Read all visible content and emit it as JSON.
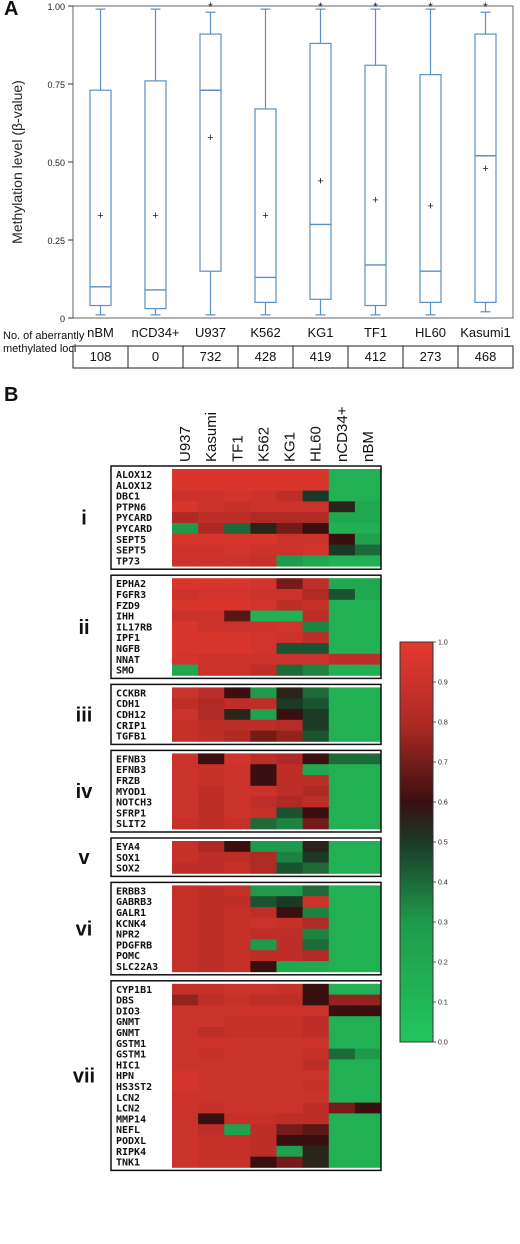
{
  "panel_labels": {
    "a": "A",
    "b": "B"
  },
  "colors": {
    "box": "#5b8fc7",
    "axis": "#333333",
    "heat_low": "#22c55e",
    "heat_mid": "#3a0f0f",
    "heat_high": "#e53a30",
    "frame": "#111111"
  },
  "chart_data": [
    {
      "type": "box",
      "ylabel": "Methylation level (β-value)",
      "ylim": [
        0,
        1
      ],
      "yticks": [
        "0",
        "0.25",
        "0.50",
        "0.75",
        "1.00"
      ],
      "categories": [
        "nBM",
        "nCD34+",
        "U937",
        "K562",
        "KG1",
        "TF1",
        "HL60",
        "Kasumi1"
      ],
      "boxes": [
        {
          "min": 0.01,
          "q1": 0.04,
          "median": 0.1,
          "q3": 0.73,
          "max": 0.99,
          "mean": 0.33,
          "significant": false
        },
        {
          "min": 0.01,
          "q1": 0.03,
          "median": 0.09,
          "q3": 0.76,
          "max": 0.99,
          "mean": 0.33,
          "significant": false
        },
        {
          "min": 0.01,
          "q1": 0.15,
          "median": 0.73,
          "q3": 0.91,
          "max": 0.98,
          "mean": 0.58,
          "significant": true
        },
        {
          "min": 0.01,
          "q1": 0.05,
          "median": 0.13,
          "q3": 0.67,
          "max": 0.99,
          "mean": 0.33,
          "significant": false
        },
        {
          "min": 0.01,
          "q1": 0.06,
          "median": 0.3,
          "q3": 0.88,
          "max": 0.99,
          "mean": 0.44,
          "significant": true
        },
        {
          "min": 0.01,
          "q1": 0.04,
          "median": 0.17,
          "q3": 0.81,
          "max": 0.99,
          "mean": 0.38,
          "significant": true
        },
        {
          "min": 0.01,
          "q1": 0.05,
          "median": 0.15,
          "q3": 0.78,
          "max": 0.99,
          "mean": 0.36,
          "significant": true
        },
        {
          "min": 0.02,
          "q1": 0.05,
          "median": 0.52,
          "q3": 0.91,
          "max": 0.98,
          "mean": 0.48,
          "significant": true
        }
      ],
      "significance_marker": "*",
      "mean_marker": "+",
      "table": {
        "header": "No. of aberrantly methylated loci",
        "values": [
          "108",
          "0",
          "732",
          "428",
          "419",
          "412",
          "273",
          "468"
        ]
      }
    },
    {
      "type": "heatmap",
      "columns": [
        "U937",
        "Kasumi",
        "TF1",
        "K562",
        "KG1",
        "HL60",
        "nCD34+",
        "nBM"
      ],
      "colorbar": {
        "min": 0.0,
        "max": 1.0,
        "ticks": [
          "0.0",
          "0.1",
          "0.2",
          "0.3",
          "0.4",
          "0.5",
          "0.6",
          "0.7",
          "0.8",
          "0.9",
          "1.0"
        ]
      },
      "groups": [
        {
          "label": "i",
          "rows": [
            {
              "gene": "ALOX12",
              "values": [
                0.95,
                0.95,
                0.95,
                0.95,
                0.95,
                0.95,
                0.15,
                0.15
              ]
            },
            {
              "gene": "ALOX12",
              "values": [
                0.95,
                0.95,
                0.95,
                0.95,
                0.95,
                0.95,
                0.15,
                0.15
              ]
            },
            {
              "gene": "DBC1",
              "values": [
                0.9,
                0.9,
                0.92,
                0.9,
                0.85,
                0.5,
                0.15,
                0.15
              ]
            },
            {
              "gene": "PTPN6",
              "values": [
                0.95,
                0.9,
                0.88,
                0.9,
                0.9,
                0.9,
                0.55,
                0.2
              ]
            },
            {
              "gene": "PYCARD",
              "values": [
                0.8,
                0.85,
                0.85,
                0.8,
                0.8,
                0.8,
                0.2,
                0.2
              ]
            },
            {
              "gene": "PYCARD",
              "values": [
                0.3,
                0.8,
                0.4,
                0.55,
                0.7,
                0.6,
                0.15,
                0.15
              ]
            },
            {
              "gene": "SEPT5",
              "values": [
                0.95,
                0.95,
                0.95,
                0.95,
                0.9,
                0.9,
                0.6,
                0.25
              ]
            },
            {
              "gene": "SEPT5",
              "values": [
                0.9,
                0.9,
                0.92,
                0.9,
                0.9,
                0.92,
                0.5,
                0.4
              ]
            },
            {
              "gene": "TP73",
              "values": [
                0.9,
                0.9,
                0.9,
                0.88,
                0.3,
                0.2,
                0.15,
                0.15
              ]
            }
          ]
        },
        {
          "label": "ii",
          "rows": [
            {
              "gene": "EPHA2",
              "values": [
                0.95,
                0.95,
                0.95,
                0.92,
                0.7,
                0.85,
                0.2,
                0.2
              ]
            },
            {
              "gene": "FGFR3",
              "values": [
                0.9,
                0.92,
                0.92,
                0.9,
                0.9,
                0.8,
                0.45,
                0.2
              ]
            },
            {
              "gene": "FZD9",
              "values": [
                0.95,
                0.95,
                0.95,
                0.92,
                0.85,
                0.88,
                0.15,
                0.15
              ]
            },
            {
              "gene": "IHH",
              "values": [
                0.9,
                0.9,
                0.65,
                0.15,
                0.15,
                0.85,
                0.15,
                0.15
              ]
            },
            {
              "gene": "IL17RB",
              "values": [
                0.95,
                0.9,
                0.9,
                0.9,
                0.92,
                0.35,
                0.15,
                0.15
              ]
            },
            {
              "gene": "IPF1",
              "values": [
                0.95,
                0.95,
                0.95,
                0.92,
                0.9,
                0.85,
                0.15,
                0.15
              ]
            },
            {
              "gene": "NGFB",
              "values": [
                0.95,
                0.95,
                0.95,
                0.92,
                0.45,
                0.45,
                0.15,
                0.15
              ]
            },
            {
              "gene": "NNAT",
              "values": [
                0.92,
                0.9,
                0.9,
                0.9,
                0.9,
                0.9,
                0.85,
                0.85
              ]
            },
            {
              "gene": "SMO",
              "values": [
                0.2,
                0.9,
                0.9,
                0.85,
                0.4,
                0.35,
                0.15,
                0.15
              ]
            }
          ]
        },
        {
          "label": "iii",
          "rows": [
            {
              "gene": "CCKBR",
              "values": [
                0.9,
                0.85,
                0.6,
                0.3,
                0.55,
                0.4,
                0.15,
                0.15
              ]
            },
            {
              "gene": "CDH1",
              "values": [
                0.85,
                0.8,
                0.85,
                0.85,
                0.5,
                0.45,
                0.15,
                0.15
              ]
            },
            {
              "gene": "CDH12",
              "values": [
                0.9,
                0.8,
                0.55,
                0.25,
                0.6,
                0.5,
                0.15,
                0.15
              ]
            },
            {
              "gene": "CRIP1",
              "values": [
                0.88,
                0.85,
                0.85,
                0.85,
                0.82,
                0.5,
                0.15,
                0.15
              ]
            },
            {
              "gene": "TGFB1",
              "values": [
                0.88,
                0.85,
                0.8,
                0.7,
                0.75,
                0.45,
                0.15,
                0.15
              ]
            }
          ]
        },
        {
          "label": "iv",
          "rows": [
            {
              "gene": "EFNB3",
              "values": [
                0.9,
                0.6,
                0.92,
                0.85,
                0.8,
                0.6,
                0.4,
                0.4
              ]
            },
            {
              "gene": "EFNB3",
              "values": [
                0.9,
                0.88,
                0.9,
                0.6,
                0.85,
                0.2,
                0.15,
                0.15
              ]
            },
            {
              "gene": "FRZB",
              "values": [
                0.9,
                0.88,
                0.9,
                0.6,
                0.85,
                0.85,
                0.15,
                0.15
              ]
            },
            {
              "gene": "MYOD1",
              "values": [
                0.9,
                0.85,
                0.9,
                0.9,
                0.85,
                0.8,
                0.15,
                0.15
              ]
            },
            {
              "gene": "NOTCH3",
              "values": [
                0.9,
                0.85,
                0.9,
                0.85,
                0.8,
                0.85,
                0.15,
                0.15
              ]
            },
            {
              "gene": "SFRP1",
              "values": [
                0.9,
                0.85,
                0.9,
                0.88,
                0.45,
                0.6,
                0.15,
                0.15
              ]
            },
            {
              "gene": "SLIT2",
              "values": [
                0.88,
                0.85,
                0.88,
                0.4,
                0.35,
                0.7,
                0.15,
                0.15
              ]
            }
          ]
        },
        {
          "label": "v",
          "rows": [
            {
              "gene": "EYA4",
              "values": [
                0.88,
                0.8,
                0.6,
                0.3,
                0.3,
                0.55,
                0.15,
                0.15
              ]
            },
            {
              "gene": "SOX1",
              "values": [
                0.88,
                0.85,
                0.85,
                0.8,
                0.35,
                0.5,
                0.15,
                0.15
              ]
            },
            {
              "gene": "SOX2",
              "values": [
                0.85,
                0.85,
                0.88,
                0.8,
                0.45,
                0.4,
                0.15,
                0.15
              ]
            }
          ]
        },
        {
          "label": "vi",
          "rows": [
            {
              "gene": "ERBB3",
              "values": [
                0.88,
                0.85,
                0.88,
                0.3,
                0.3,
                0.4,
                0.15,
                0.15
              ]
            },
            {
              "gene": "GABRB3",
              "values": [
                0.88,
                0.85,
                0.85,
                0.45,
                0.5,
                0.9,
                0.15,
                0.15
              ]
            },
            {
              "gene": "GALR1",
              "values": [
                0.88,
                0.85,
                0.88,
                0.85,
                0.6,
                0.35,
                0.15,
                0.15
              ]
            },
            {
              "gene": "KCNK4",
              "values": [
                0.88,
                0.85,
                0.88,
                0.9,
                0.88,
                0.8,
                0.15,
                0.15
              ]
            },
            {
              "gene": "NPR2",
              "values": [
                0.88,
                0.85,
                0.88,
                0.85,
                0.85,
                0.35,
                0.15,
                0.15
              ]
            },
            {
              "gene": "PDGFRB",
              "values": [
                0.88,
                0.85,
                0.88,
                0.3,
                0.85,
                0.4,
                0.15,
                0.15
              ]
            },
            {
              "gene": "POMC",
              "values": [
                0.88,
                0.85,
                0.88,
                0.85,
                0.85,
                0.8,
                0.15,
                0.15
              ]
            },
            {
              "gene": "SLC22A3",
              "values": [
                0.88,
                0.85,
                0.88,
                0.6,
                0.2,
                0.2,
                0.15,
                0.15
              ]
            }
          ]
        },
        {
          "label": "vii",
          "rows": [
            {
              "gene": "CYP1B1",
              "values": [
                0.88,
                0.88,
                0.9,
                0.9,
                0.88,
                0.6,
                0.15,
                0.15
              ]
            },
            {
              "gene": "DBS",
              "values": [
                0.75,
                0.85,
                0.88,
                0.85,
                0.85,
                0.6,
                0.75,
                0.75
              ]
            },
            {
              "gene": "DIO3",
              "values": [
                0.9,
                0.9,
                0.9,
                0.9,
                0.9,
                0.9,
                0.6,
                0.6
              ]
            },
            {
              "gene": "GNMT",
              "values": [
                0.9,
                0.9,
                0.88,
                0.88,
                0.88,
                0.85,
                0.15,
                0.15
              ]
            },
            {
              "gene": "GNMT",
              "values": [
                0.9,
                0.85,
                0.88,
                0.88,
                0.88,
                0.85,
                0.15,
                0.15
              ]
            },
            {
              "gene": "GSTM1",
              "values": [
                0.9,
                0.9,
                0.9,
                0.9,
                0.9,
                0.9,
                0.15,
                0.15
              ]
            },
            {
              "gene": "GSTM1",
              "values": [
                0.9,
                0.88,
                0.9,
                0.9,
                0.9,
                0.88,
                0.4,
                0.3
              ]
            },
            {
              "gene": "HIC1",
              "values": [
                0.9,
                0.9,
                0.9,
                0.9,
                0.9,
                0.85,
                0.15,
                0.15
              ]
            },
            {
              "gene": "HPN",
              "values": [
                0.92,
                0.9,
                0.9,
                0.9,
                0.9,
                0.9,
                0.15,
                0.15
              ]
            },
            {
              "gene": "HS3ST2",
              "values": [
                0.92,
                0.9,
                0.9,
                0.9,
                0.9,
                0.88,
                0.15,
                0.15
              ]
            },
            {
              "gene": "LCN2",
              "values": [
                0.9,
                0.9,
                0.9,
                0.9,
                0.9,
                0.9,
                0.15,
                0.15
              ]
            },
            {
              "gene": "LCN2",
              "values": [
                0.9,
                0.88,
                0.9,
                0.9,
                0.9,
                0.85,
                0.7,
                0.6
              ]
            },
            {
              "gene": "MMP14",
              "values": [
                0.9,
                0.6,
                0.88,
                0.88,
                0.85,
                0.85,
                0.15,
                0.15
              ]
            },
            {
              "gene": "NEFL",
              "values": [
                0.9,
                0.85,
                0.25,
                0.85,
                0.7,
                0.65,
                0.15,
                0.15
              ]
            },
            {
              "gene": "PODXL",
              "values": [
                0.9,
                0.88,
                0.88,
                0.85,
                0.6,
                0.6,
                0.15,
                0.15
              ]
            },
            {
              "gene": "RIPK4",
              "values": [
                0.9,
                0.88,
                0.88,
                0.85,
                0.25,
                0.55,
                0.15,
                0.15
              ]
            },
            {
              "gene": "TNK1",
              "values": [
                0.9,
                0.88,
                0.88,
                0.6,
                0.7,
                0.55,
                0.15,
                0.15
              ]
            }
          ]
        }
      ]
    }
  ]
}
